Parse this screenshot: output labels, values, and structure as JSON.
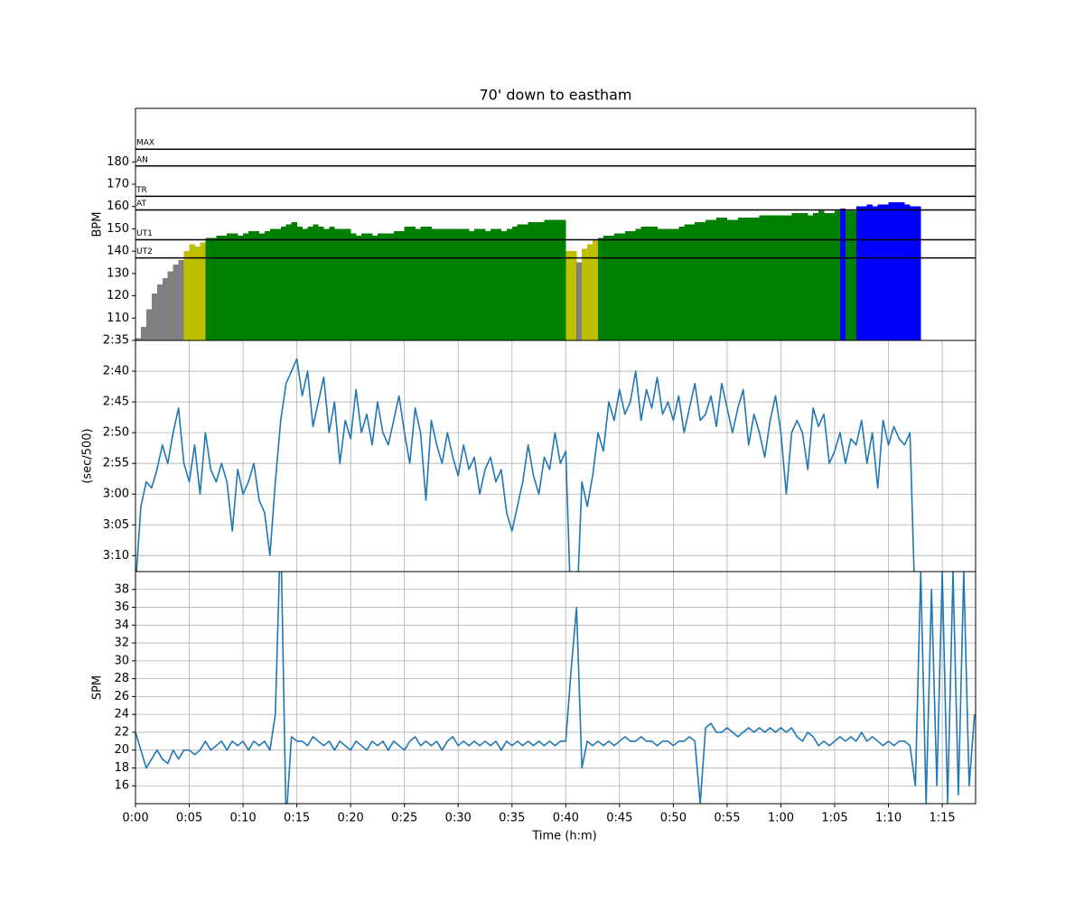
{
  "chart_data": [
    {
      "type": "bar",
      "title": "70' down to eastham",
      "ylabel": "BPM",
      "grid": false,
      "xlim": [
        0,
        78.1
      ],
      "ylim": [
        100,
        204
      ],
      "yticks": [
        110,
        120,
        130,
        140,
        150,
        160,
        170,
        180
      ],
      "thresholds": [
        {
          "label": "UT2",
          "value": 137
        },
        {
          "label": "UT1",
          "value": 145.1
        },
        {
          "label": "AT",
          "value": 158.5
        },
        {
          "label": "TR",
          "value": 164.6
        },
        {
          "label": "AN",
          "value": 178.2
        },
        {
          "label": "MAX",
          "value": 185.7
        }
      ],
      "zone_colors": [
        "#808080",
        "#bfbf00",
        "#008000",
        "#0000ff"
      ],
      "x": [
        0,
        0.5,
        1,
        1.5,
        2,
        2.5,
        3,
        3.5,
        4,
        4.5,
        5,
        5.5,
        6,
        6.5,
        7,
        7.5,
        8,
        8.5,
        9,
        9.5,
        10,
        10.5,
        11,
        11.5,
        12,
        12.5,
        13,
        13.5,
        14,
        14.5,
        15,
        15.5,
        16,
        16.5,
        17,
        17.5,
        18,
        18.5,
        19,
        19.5,
        20,
        20.5,
        21,
        21.5,
        22,
        22.5,
        23,
        23.5,
        24,
        24.5,
        25,
        25.5,
        26,
        26.5,
        27,
        27.5,
        28,
        28.5,
        29,
        29.5,
        30,
        30.5,
        31,
        31.5,
        32,
        32.5,
        33,
        33.5,
        34,
        34.5,
        35,
        35.5,
        36,
        36.5,
        37,
        37.5,
        38,
        38.5,
        39,
        39.5,
        40,
        40.5,
        41,
        41.5,
        42,
        42.5,
        43,
        43.5,
        44,
        44.5,
        45,
        45.5,
        46,
        46.5,
        47,
        47.5,
        48,
        48.5,
        49,
        49.5,
        50,
        50.5,
        51,
        51.5,
        52,
        52.5,
        53,
        53.5,
        54,
        54.5,
        55,
        55.5,
        56,
        56.5,
        57,
        57.5,
        58,
        58.5,
        59,
        59.5,
        60,
        60.5,
        61,
        61.5,
        62,
        62.5,
        63,
        63.5,
        64,
        64.5,
        65,
        65.5,
        66,
        66.5,
        67,
        67.5,
        68,
        68.5,
        69,
        69.5,
        70,
        70.5,
        71,
        71.5,
        72,
        72.5
      ],
      "values": [
        101,
        106,
        114,
        121,
        125,
        128,
        131,
        134,
        136,
        140,
        143,
        142,
        144,
        146,
        146,
        147,
        147,
        148,
        148,
        147,
        148,
        149,
        149,
        148,
        149,
        150,
        150,
        151,
        152,
        153,
        151,
        150,
        151,
        152,
        151,
        150,
        151,
        150,
        150,
        150,
        148,
        147,
        148,
        148,
        147,
        148,
        148,
        148,
        149,
        149,
        151,
        151,
        150,
        151,
        151,
        150,
        150,
        150,
        150,
        150,
        150,
        150,
        149,
        150,
        150,
        149,
        150,
        150,
        149,
        150,
        151,
        152,
        152,
        153,
        153,
        153,
        154,
        154,
        154,
        154,
        140,
        140,
        135,
        141,
        143,
        145,
        146,
        147,
        147,
        148,
        148,
        149,
        149,
        150,
        151,
        151,
        151,
        150,
        150,
        150,
        150,
        151,
        152,
        152,
        153,
        153,
        154,
        154,
        155,
        155,
        154,
        154,
        155,
        155,
        155,
        155,
        156,
        156,
        156,
        156,
        156,
        156,
        157,
        157,
        157,
        156,
        157,
        158,
        157,
        157,
        158,
        159,
        158,
        158,
        160,
        160,
        161,
        160,
        161,
        161,
        162,
        162,
        162,
        161,
        160,
        160
      ]
    },
    {
      "type": "line",
      "ylabel": "(sec/500)",
      "grid": true,
      "color": "#1f77b4",
      "xlim": [
        0,
        78.1
      ],
      "ylim": [
        192.6,
        155
      ],
      "yticks": [
        {
          "value": 155,
          "label": "2:35"
        },
        {
          "value": 160,
          "label": "2:40"
        },
        {
          "value": 165,
          "label": "2:45"
        },
        {
          "value": 170,
          "label": "2:50"
        },
        {
          "value": 175,
          "label": "2:55"
        },
        {
          "value": 180,
          "label": "3:00"
        },
        {
          "value": 185,
          "label": "3:05"
        },
        {
          "value": 190,
          "label": "3:10"
        }
      ],
      "x": [
        0,
        0.5,
        1,
        1.5,
        2,
        2.5,
        3,
        3.5,
        4,
        4.5,
        5,
        5.5,
        6,
        6.5,
        7,
        7.5,
        8,
        8.5,
        9,
        9.5,
        10,
        10.5,
        11,
        11.5,
        12,
        12.5,
        13,
        13.5,
        14,
        14.5,
        15,
        15.5,
        16,
        16.5,
        17,
        17.5,
        18,
        18.5,
        19,
        19.5,
        20,
        20.5,
        21,
        21.5,
        22,
        22.5,
        23,
        23.5,
        24,
        24.5,
        25,
        25.5,
        26,
        26.5,
        27,
        27.5,
        28,
        28.5,
        29,
        29.5,
        30,
        30.5,
        31,
        31.5,
        32,
        32.5,
        33,
        33.5,
        34,
        34.5,
        35,
        35.5,
        36,
        36.5,
        37,
        37.5,
        38,
        38.5,
        39,
        39.5,
        40,
        40.5,
        41,
        41.5,
        42,
        42.5,
        43,
        43.5,
        44,
        44.5,
        45,
        45.5,
        46,
        46.5,
        47,
        47.5,
        48,
        48.5,
        49,
        49.5,
        50,
        50.5,
        51,
        51.5,
        52,
        52.5,
        53,
        53.5,
        54,
        54.5,
        55,
        55.5,
        56,
        56.5,
        57,
        57.5,
        58,
        58.5,
        59,
        59.5,
        60,
        60.5,
        61,
        61.5,
        62,
        62.5,
        63,
        63.5,
        64,
        64.5,
        65,
        65.5,
        66,
        66.5,
        67,
        67.5,
        68,
        68.5,
        69,
        69.5,
        70,
        70.5,
        71,
        71.5,
        72,
        72.5
      ],
      "values": [
        195,
        182,
        178,
        179,
        176,
        172,
        175,
        170,
        166,
        175,
        178,
        172,
        180,
        170,
        176,
        178,
        175,
        178,
        186,
        176,
        180,
        178,
        175,
        181,
        183,
        190,
        178,
        168,
        162,
        160,
        158,
        164,
        160,
        169,
        165,
        161,
        170,
        165,
        175,
        168,
        171,
        163,
        170,
        167,
        172,
        165,
        170,
        172,
        168,
        164,
        170,
        175,
        166,
        170,
        181,
        168,
        172,
        175,
        170,
        174,
        177,
        172,
        176,
        174,
        180,
        176,
        174,
        178,
        176,
        183,
        186,
        182,
        178,
        172,
        177,
        180,
        174,
        176,
        170,
        175,
        173,
        200,
        200,
        178,
        182,
        177,
        170,
        173,
        165,
        168,
        163,
        167,
        165,
        160,
        168,
        163,
        166,
        161,
        167,
        165,
        168,
        164,
        170,
        166,
        162,
        168,
        167,
        164,
        169,
        162,
        166,
        170,
        166,
        163,
        172,
        167,
        170,
        174,
        168,
        164,
        170,
        180,
        170,
        168,
        170,
        176,
        166,
        169,
        167,
        175,
        173,
        170,
        175,
        171,
        172,
        168,
        175,
        170,
        179,
        168,
        172,
        169,
        171,
        172,
        170,
        200
      ]
    },
    {
      "type": "line",
      "ylabel": "SPM",
      "xlabel": "Time (h:m)",
      "grid": true,
      "color": "#1f77b4",
      "xlim": [
        0,
        78.1
      ],
      "ylim": [
        14,
        40
      ],
      "yticks": [
        16,
        18,
        20,
        22,
        24,
        26,
        28,
        30,
        32,
        34,
        36,
        38
      ],
      "xticks": [
        {
          "value": 0,
          "label": "0:00"
        },
        {
          "value": 5,
          "label": "0:05"
        },
        {
          "value": 10,
          "label": "0:10"
        },
        {
          "value": 15,
          "label": "0:15"
        },
        {
          "value": 20,
          "label": "0:20"
        },
        {
          "value": 25,
          "label": "0:25"
        },
        {
          "value": 30,
          "label": "0:30"
        },
        {
          "value": 35,
          "label": "0:35"
        },
        {
          "value": 40,
          "label": "0:40"
        },
        {
          "value": 45,
          "label": "0:45"
        },
        {
          "value": 50,
          "label": "0:50"
        },
        {
          "value": 55,
          "label": "0:55"
        },
        {
          "value": 60,
          "label": "1:00"
        },
        {
          "value": 65,
          "label": "1:05"
        },
        {
          "value": 70,
          "label": "1:10"
        },
        {
          "value": 75,
          "label": "1:15"
        }
      ],
      "x": [
        0,
        0.5,
        1,
        1.5,
        2,
        2.5,
        3,
        3.5,
        4,
        4.5,
        5,
        5.5,
        6,
        6.5,
        7,
        7.5,
        8,
        8.5,
        9,
        9.5,
        10,
        10.5,
        11,
        11.5,
        12,
        12.5,
        13,
        13.5,
        14,
        14.5,
        15,
        15.5,
        16,
        16.5,
        17,
        17.5,
        18,
        18.5,
        19,
        19.5,
        20,
        20.5,
        21,
        21.5,
        22,
        22.5,
        23,
        23.5,
        24,
        24.5,
        25,
        25.5,
        26,
        26.5,
        27,
        27.5,
        28,
        28.5,
        29,
        29.5,
        30,
        30.5,
        31,
        31.5,
        32,
        32.5,
        33,
        33.5,
        34,
        34.5,
        35,
        35.5,
        36,
        36.5,
        37,
        37.5,
        38,
        38.5,
        39,
        39.5,
        40,
        40.5,
        41,
        41.5,
        42,
        42.5,
        43,
        43.5,
        44,
        44.5,
        45,
        45.5,
        46,
        46.5,
        47,
        47.5,
        48,
        48.5,
        49,
        49.5,
        50,
        50.5,
        51,
        51.5,
        52,
        52.5,
        53,
        53.5,
        54,
        54.5,
        55,
        55.5,
        56,
        56.5,
        57,
        57.5,
        58,
        58.5,
        59,
        59.5,
        60,
        60.5,
        61,
        61.5,
        62,
        62.5,
        63,
        63.5,
        64,
        64.5,
        65,
        65.5,
        66,
        66.5,
        67,
        67.5,
        68,
        68.5,
        69,
        69.5,
        70,
        70.5,
        71,
        71.5,
        72,
        72.5,
        73,
        73.5,
        74,
        74.5,
        75,
        75.5,
        76,
        76.5,
        77,
        77.5,
        78
      ],
      "values": [
        22,
        20,
        18,
        19,
        20,
        19,
        18.5,
        20,
        19,
        20,
        20,
        19.5,
        20,
        21,
        20,
        20.5,
        21,
        20,
        21,
        20.5,
        21,
        20,
        21,
        20.5,
        21,
        20,
        24,
        45,
        12,
        21.5,
        21,
        21,
        20.5,
        21.5,
        21,
        20.5,
        21,
        20,
        21,
        20.5,
        20,
        21,
        20.5,
        20,
        21,
        20.5,
        21,
        20,
        21,
        20.5,
        20,
        21,
        21.5,
        20.5,
        21,
        20.5,
        21,
        20,
        21,
        21.5,
        20.5,
        21,
        20.5,
        21,
        20.5,
        21,
        20.5,
        21,
        20,
        21,
        20.5,
        21,
        20.5,
        21,
        20.5,
        21,
        20.5,
        21,
        20.5,
        21,
        21,
        29,
        36,
        18,
        21,
        20.5,
        21,
        20.5,
        21,
        20.5,
        21,
        21.5,
        21,
        21,
        21.5,
        21,
        21,
        20.5,
        21,
        21,
        20.5,
        21,
        21,
        21.5,
        21,
        14,
        22.5,
        23,
        22,
        22,
        22.5,
        22,
        21.5,
        22,
        22.5,
        22,
        22.5,
        22,
        22.5,
        22,
        22.5,
        22,
        22.5,
        21.5,
        21,
        22,
        21.5,
        20.5,
        21,
        20.5,
        21,
        21.5,
        21,
        21.5,
        21,
        22,
        21,
        21.5,
        21,
        20.5,
        21,
        20.5,
        21,
        21,
        20.5,
        16,
        40,
        14,
        38,
        16,
        40,
        14,
        40,
        15,
        40,
        16,
        24
      ]
    }
  ]
}
